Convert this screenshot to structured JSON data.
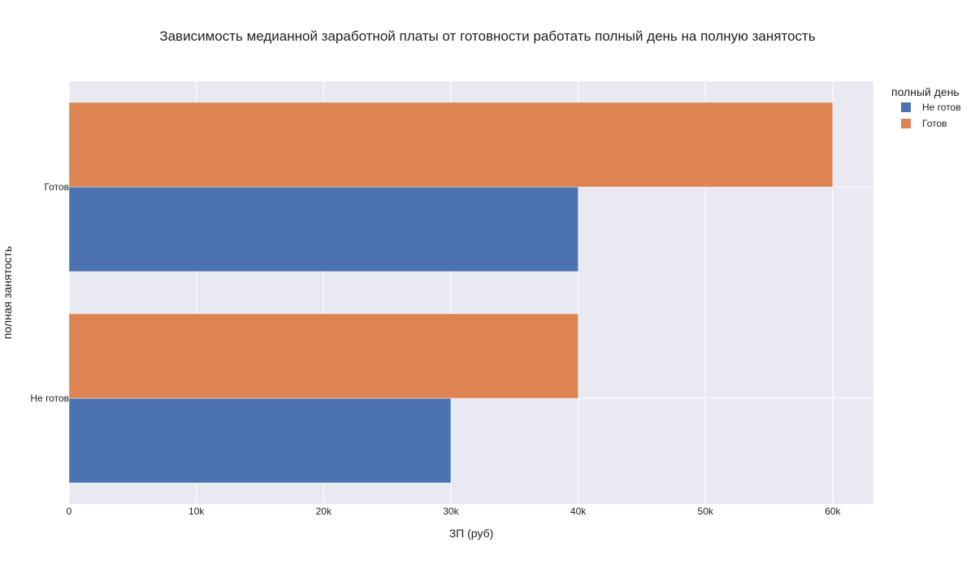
{
  "chart_data": {
    "type": "bar",
    "orientation": "horizontal",
    "barmode": "group",
    "title": "Зависимость медианной заработной платы от готовности работать полный день на полную занятость",
    "xlabel": "ЗП (руб)",
    "ylabel": "полная занятость",
    "categories": [
      "Не готов",
      "Готов"
    ],
    "xlim": [
      0,
      63200
    ],
    "x_ticks": [
      {
        "value": 0,
        "label": "0"
      },
      {
        "value": 10000,
        "label": "10k"
      },
      {
        "value": 20000,
        "label": "20k"
      },
      {
        "value": 30000,
        "label": "30k"
      },
      {
        "value": 40000,
        "label": "40k"
      },
      {
        "value": 50000,
        "label": "50k"
      },
      {
        "value": 60000,
        "label": "60k"
      }
    ],
    "legend": {
      "title": "полный день",
      "position": "top-right"
    },
    "grid": true,
    "colors": {
      "plot_bg": "#e9e9f2",
      "grid": "#ffffff"
    },
    "series": [
      {
        "name": "Не готов",
        "color": "#4c72b0",
        "values": [
          30000,
          40000
        ]
      },
      {
        "name": "Готов",
        "color": "#dd8452",
        "values": [
          40000,
          60000
        ]
      }
    ]
  }
}
